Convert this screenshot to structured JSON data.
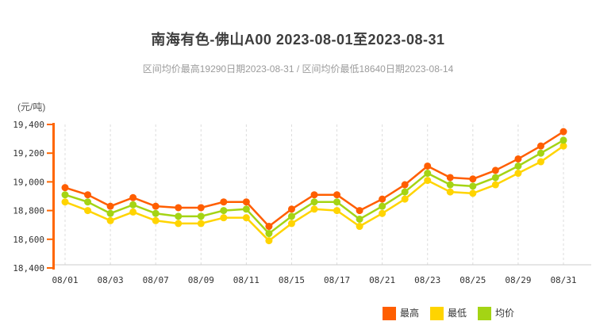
{
  "title": "南海有色-佛山A00 2023-08-01至2023-08-31",
  "subtitle": "区间均价最高19290日期2023-08-31 / 区间均价最低18640日期2023-08-14",
  "unit_label": "(元/吨)",
  "colors": {
    "axis": "#ff6600",
    "grid": "#dcdcdc",
    "x_axis_line": "#cccccc",
    "high": "#ff5e00",
    "low": "#ffd400",
    "avg": "#a4d414",
    "title_text": "#3d3d3d",
    "subtitle_text": "#9b9b9b",
    "tick_text": "#333333"
  },
  "chart_data": {
    "type": "line",
    "title": "南海有色-佛山A00 2023-08-01至2023-08-31",
    "ylabel": "元/吨",
    "ylim": [
      18400,
      19400
    ],
    "y_ticks": [
      18400,
      18600,
      18800,
      19000,
      19200,
      19400
    ],
    "y_tick_labels": [
      "18,400",
      "18,600",
      "18,800",
      "19,000",
      "19,200",
      "19,400"
    ],
    "grid": "vertical-dashed",
    "legend_position": "bottom-right",
    "x": [
      "08/01",
      "08/02",
      "08/03",
      "08/04",
      "08/07",
      "08/08",
      "08/09",
      "08/10",
      "08/11",
      "08/14",
      "08/15",
      "08/16",
      "08/17",
      "08/18",
      "08/21",
      "08/22",
      "08/23",
      "08/24",
      "08/25",
      "08/28",
      "08/29",
      "08/30",
      "08/31"
    ],
    "x_tick_indices": [
      0,
      2,
      4,
      6,
      8,
      10,
      12,
      14,
      16,
      18,
      20,
      22
    ],
    "x_tick_labels": [
      "08/01",
      "08/03",
      "08/07",
      "08/09",
      "08/11",
      "08/15",
      "08/17",
      "08/21",
      "08/23",
      "08/25",
      "08/29",
      "08/31"
    ],
    "series": [
      {
        "key": "high",
        "name": "最高",
        "values": [
          18960,
          18910,
          18830,
          18890,
          18830,
          18820,
          18820,
          18860,
          18860,
          18690,
          18810,
          18910,
          18910,
          18800,
          18880,
          18980,
          19110,
          19030,
          19020,
          19080,
          19160,
          19250,
          19350
        ]
      },
      {
        "key": "low",
        "name": "最低",
        "values": [
          18860,
          18800,
          18730,
          18790,
          18730,
          18710,
          18710,
          18750,
          18750,
          18590,
          18710,
          18810,
          18800,
          18690,
          18780,
          18880,
          19010,
          18930,
          18920,
          18980,
          19060,
          19140,
          19250
        ]
      },
      {
        "key": "avg",
        "name": "均价",
        "values": [
          18910,
          18860,
          18780,
          18840,
          18780,
          18760,
          18760,
          18800,
          18810,
          18640,
          18760,
          18860,
          18860,
          18740,
          18830,
          18930,
          19060,
          18980,
          18970,
          19030,
          19110,
          19200,
          19290
        ]
      }
    ],
    "annotations": {
      "max_avg": {
        "value": 19290,
        "date": "2023-08-31"
      },
      "min_avg": {
        "value": 18640,
        "date": "2023-08-14"
      }
    }
  }
}
